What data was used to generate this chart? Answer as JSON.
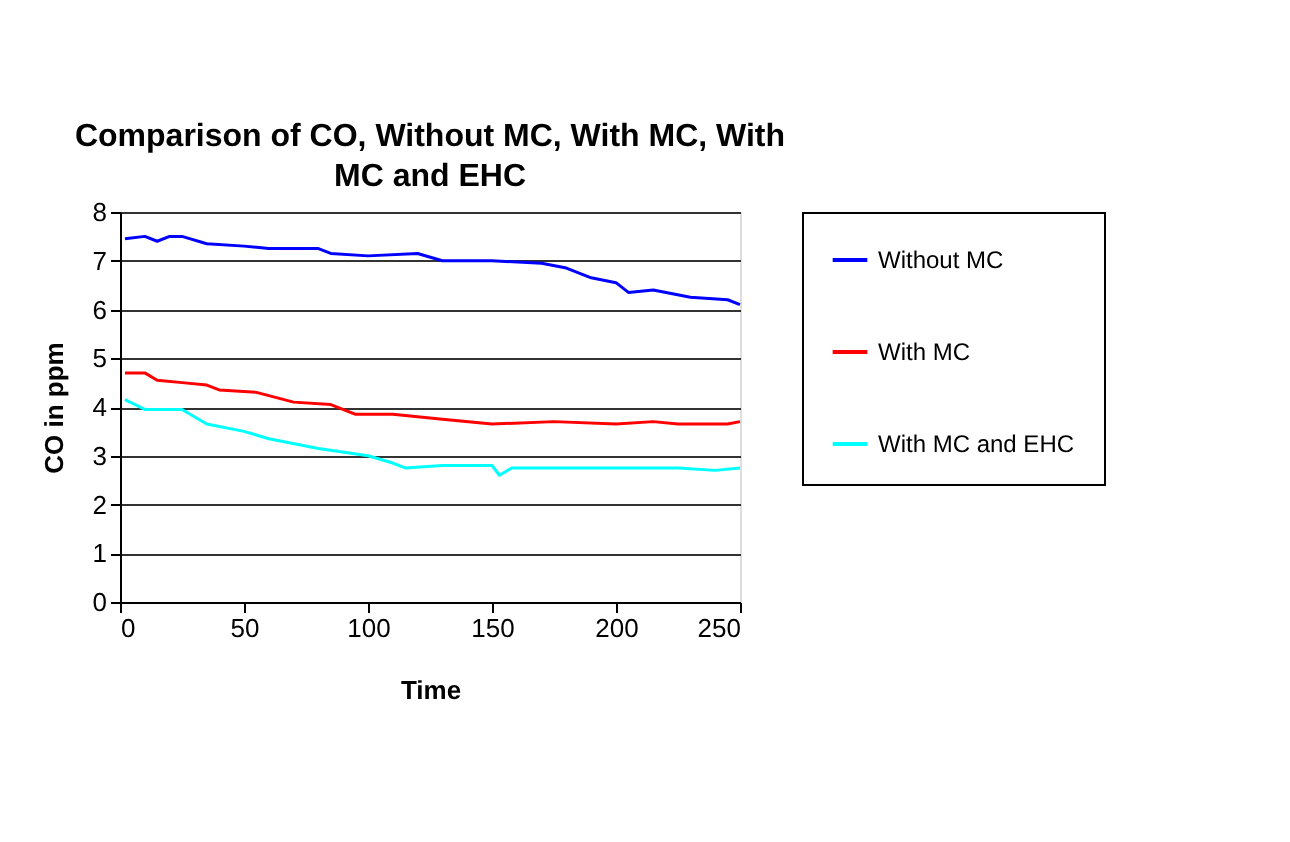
{
  "chart_data": {
    "type": "line",
    "title": "Comparison of CO, Without MC, With MC, With MC and EHC",
    "xlabel": "Time",
    "ylabel": "CO in ppm",
    "xlim": [
      0,
      250
    ],
    "xticks": [
      0,
      50,
      100,
      150,
      200,
      250
    ],
    "ylim": [
      0,
      8
    ],
    "yticks": [
      0,
      1,
      2,
      3,
      4,
      5,
      6,
      7,
      8
    ],
    "grid": "y",
    "legend": "right",
    "marker": "none",
    "line_style": "solid",
    "series": [
      {
        "name": "Without MC",
        "color": "#0000ff",
        "x": [
          2,
          10,
          15,
          20,
          25,
          35,
          50,
          60,
          80,
          85,
          100,
          120,
          130,
          150,
          170,
          180,
          190,
          200,
          205,
          215,
          230,
          245,
          250
        ],
        "values": [
          7.45,
          7.5,
          7.4,
          7.5,
          7.5,
          7.35,
          7.3,
          7.25,
          7.25,
          7.15,
          7.1,
          7.15,
          7.0,
          7.0,
          6.95,
          6.85,
          6.65,
          6.55,
          6.35,
          6.4,
          6.25,
          6.2,
          6.1
        ]
      },
      {
        "name": "With MC",
        "color": "#ff0000",
        "x": [
          2,
          10,
          15,
          25,
          35,
          40,
          55,
          70,
          85,
          95,
          110,
          130,
          150,
          175,
          200,
          215,
          225,
          245,
          250
        ],
        "values": [
          4.7,
          4.7,
          4.55,
          4.5,
          4.45,
          4.35,
          4.3,
          4.1,
          4.05,
          3.85,
          3.85,
          3.75,
          3.65,
          3.7,
          3.65,
          3.7,
          3.65,
          3.65,
          3.7
        ]
      },
      {
        "name": "With MC and EHC",
        "color": "#00ffff",
        "x": [
          2,
          10,
          25,
          35,
          50,
          60,
          80,
          100,
          110,
          115,
          130,
          150,
          153,
          158,
          175,
          200,
          225,
          240,
          250
        ],
        "values": [
          4.15,
          3.95,
          3.95,
          3.65,
          3.5,
          3.35,
          3.15,
          3.0,
          2.85,
          2.75,
          2.8,
          2.8,
          2.6,
          2.75,
          2.75,
          2.75,
          2.75,
          2.7,
          2.75
        ]
      }
    ]
  }
}
